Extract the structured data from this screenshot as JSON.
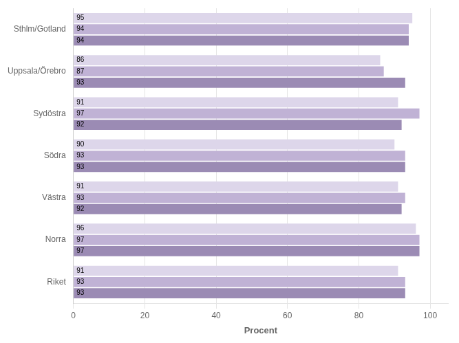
{
  "chart_data": {
    "type": "bar",
    "orientation": "horizontal",
    "categories": [
      "Riket",
      "Norra",
      "Västra",
      "Södra",
      "Sydöstra",
      "Uppsala/Örebro",
      "Sthlm/Gotland"
    ],
    "series": [
      {
        "color": "#ddd6ea",
        "values": [
          91,
          96,
          91,
          90,
          91,
          86,
          95
        ]
      },
      {
        "color": "#c0b2d5",
        "values": [
          93,
          97,
          93,
          93,
          97,
          87,
          94
        ]
      },
      {
        "color": "#9b8bb4",
        "values": [
          93,
          97,
          92,
          93,
          92,
          93,
          94
        ]
      }
    ],
    "xlabel": "Procent",
    "xlim": [
      0,
      105
    ],
    "xticks": [
      0,
      20,
      40,
      60,
      80,
      100
    ],
    "grid": true,
    "data_labels": true
  }
}
